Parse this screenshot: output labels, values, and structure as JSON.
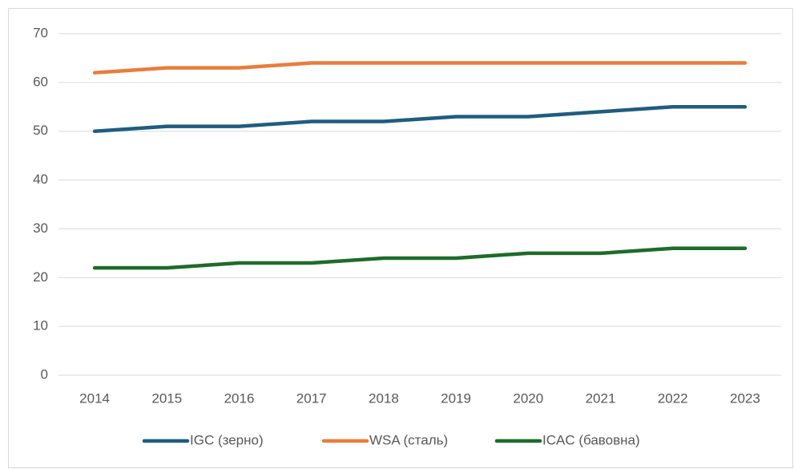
{
  "chart_data": {
    "type": "line",
    "categories": [
      "2014",
      "2015",
      "2016",
      "2017",
      "2018",
      "2019",
      "2020",
      "2021",
      "2022",
      "2023"
    ],
    "series": [
      {
        "name": "IGC (зерно)",
        "color": "#1f5c80",
        "values": [
          50,
          51,
          51,
          52,
          52,
          53,
          53,
          54,
          55,
          55
        ]
      },
      {
        "name": "WSA (сталь)",
        "color": "#e97d3c",
        "values": [
          62,
          63,
          63,
          64,
          64,
          64,
          64,
          64,
          64,
          64
        ]
      },
      {
        "name": "ICAC (бавовна)",
        "color": "#1e6b2a",
        "values": [
          22,
          22,
          23,
          23,
          24,
          24,
          25,
          25,
          26,
          26
        ]
      }
    ],
    "ylim": [
      0,
      70
    ],
    "yticks": [
      0,
      10,
      20,
      30,
      40,
      50,
      60,
      70
    ],
    "grid": true,
    "legend": "bottom"
  }
}
